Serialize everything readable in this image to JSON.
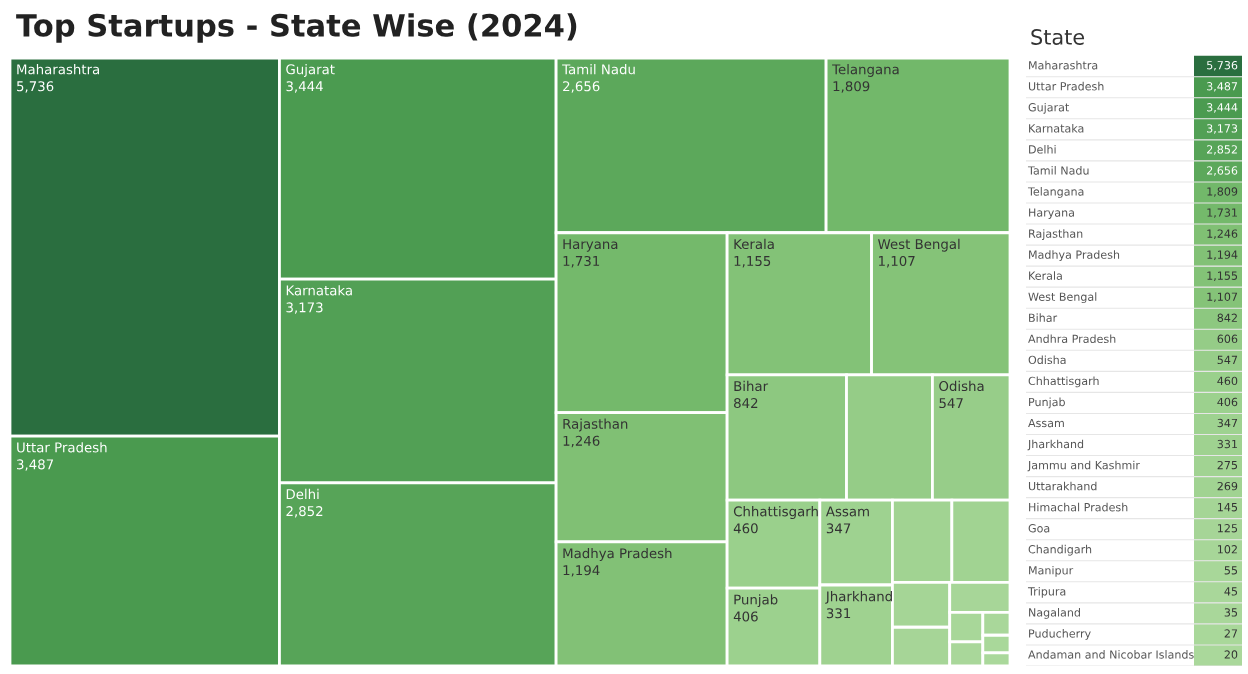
{
  "chart_data": {
    "type": "other",
    "title": "Top Startups - State Wise (2024)",
    "legend_title": "State",
    "categories": [
      "Maharashtra",
      "Uttar Pradesh",
      "Gujarat",
      "Karnataka",
      "Delhi",
      "Tamil Nadu",
      "Telangana",
      "Haryana",
      "Rajasthan",
      "Madhya Pradesh",
      "Kerala",
      "West Bengal",
      "Bihar",
      "Andhra Pradesh",
      "Odisha",
      "Chhattisgarh",
      "Punjab",
      "Assam",
      "Jharkhand",
      "Jammu and Kashmir",
      "Uttarakhand",
      "Himachal Pradesh",
      "Goa",
      "Chandigarh",
      "Manipur",
      "Tripura",
      "Nagaland",
      "Puducherry",
      "Andaman and Nicobar Islands"
    ],
    "values": [
      5736,
      3487,
      3444,
      3173,
      2852,
      2656,
      1809,
      1731,
      1246,
      1194,
      1155,
      1107,
      842,
      606,
      547,
      460,
      406,
      347,
      331,
      275,
      269,
      145,
      125,
      102,
      55,
      45,
      35,
      27,
      20
    ],
    "colors": [
      "#2a6e3f",
      "#4a9a4f",
      "#4b9b50",
      "#52a055",
      "#57a458",
      "#5ca85b",
      "#72b86a",
      "#74b96b",
      "#80c074",
      "#82c176",
      "#83c277",
      "#85c378",
      "#8dc880",
      "#95cc87",
      "#97cd89",
      "#9ad08c",
      "#9cd18e",
      "#9ed290",
      "#9fd290",
      "#a1d392",
      "#a1d392",
      "#a5d596",
      "#a6d597",
      "#a7d698",
      "#a8d799",
      "#a9d79a",
      "#a9d79a",
      "#a9d89a",
      "#aad89b"
    ],
    "value_labels": [
      "5,736",
      "3,487",
      "3,444",
      "3,173",
      "2,852",
      "2,656",
      "1,809",
      "1,731",
      "1,246",
      "1,194",
      "1,155",
      "1,107",
      "842",
      "606",
      "547",
      "460",
      "406",
      "347",
      "331",
      "275",
      "269",
      "145",
      "125",
      "102",
      "55",
      "45",
      "35",
      "27",
      "20"
    ]
  }
}
